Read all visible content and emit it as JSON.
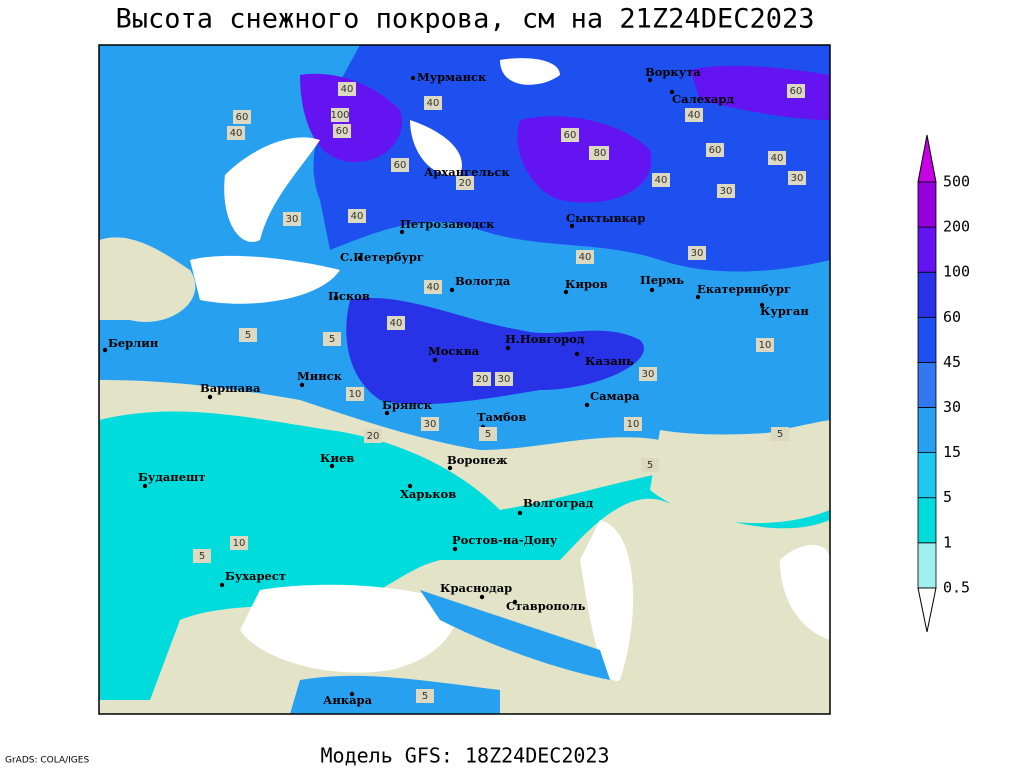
{
  "title": "Высота снежного покрова, см на 21Z24DEC2023",
  "subtitle": "Модель GFS: 18Z24DEC2023",
  "credit": "GrADS: COLA/IGES",
  "cities": [
    "Мурманск",
    "Воркута",
    "Салехард",
    "Архангельск",
    "Сыктывкар",
    "Петрозаводск",
    "С.Петербург",
    "Вологда",
    "Киров",
    "Пермь",
    "Екатеринбург",
    "Курган",
    "Псков",
    "Берлин",
    "Н.Новгород",
    "Москва",
    "Казань",
    "Варшава",
    "Минск",
    "Самара",
    "Брянск",
    "Тамбов",
    "Киев",
    "Воронеж",
    "Будапешт",
    "Харьков",
    "Волгоград",
    "Ростов-на-Дону",
    "Бухарест",
    "Краснодар",
    "Ставрополь",
    "Анкара"
  ],
  "contour_labels": [
    60,
    40,
    100,
    60,
    80,
    40,
    60,
    40,
    30,
    40,
    60,
    80,
    40,
    60,
    40,
    30,
    20,
    30,
    40,
    30,
    40,
    40,
    20,
    30,
    10,
    5,
    5,
    10,
    20,
    30,
    10,
    5,
    5,
    10,
    5,
    5,
    5,
    60,
    40,
    30
  ],
  "colorbar": {
    "levels": [
      0.5,
      1,
      5,
      15,
      30,
      45,
      60,
      100,
      200,
      500
    ],
    "colors": [
      "#ffffff",
      "#a0f0f0",
      "#00dcdc",
      "#1ec8f0",
      "#28a0f0",
      "#3278f0",
      "#1e50f0",
      "#2832e6",
      "#6414f0",
      "#9600dc",
      "#c800e6"
    ]
  }
}
